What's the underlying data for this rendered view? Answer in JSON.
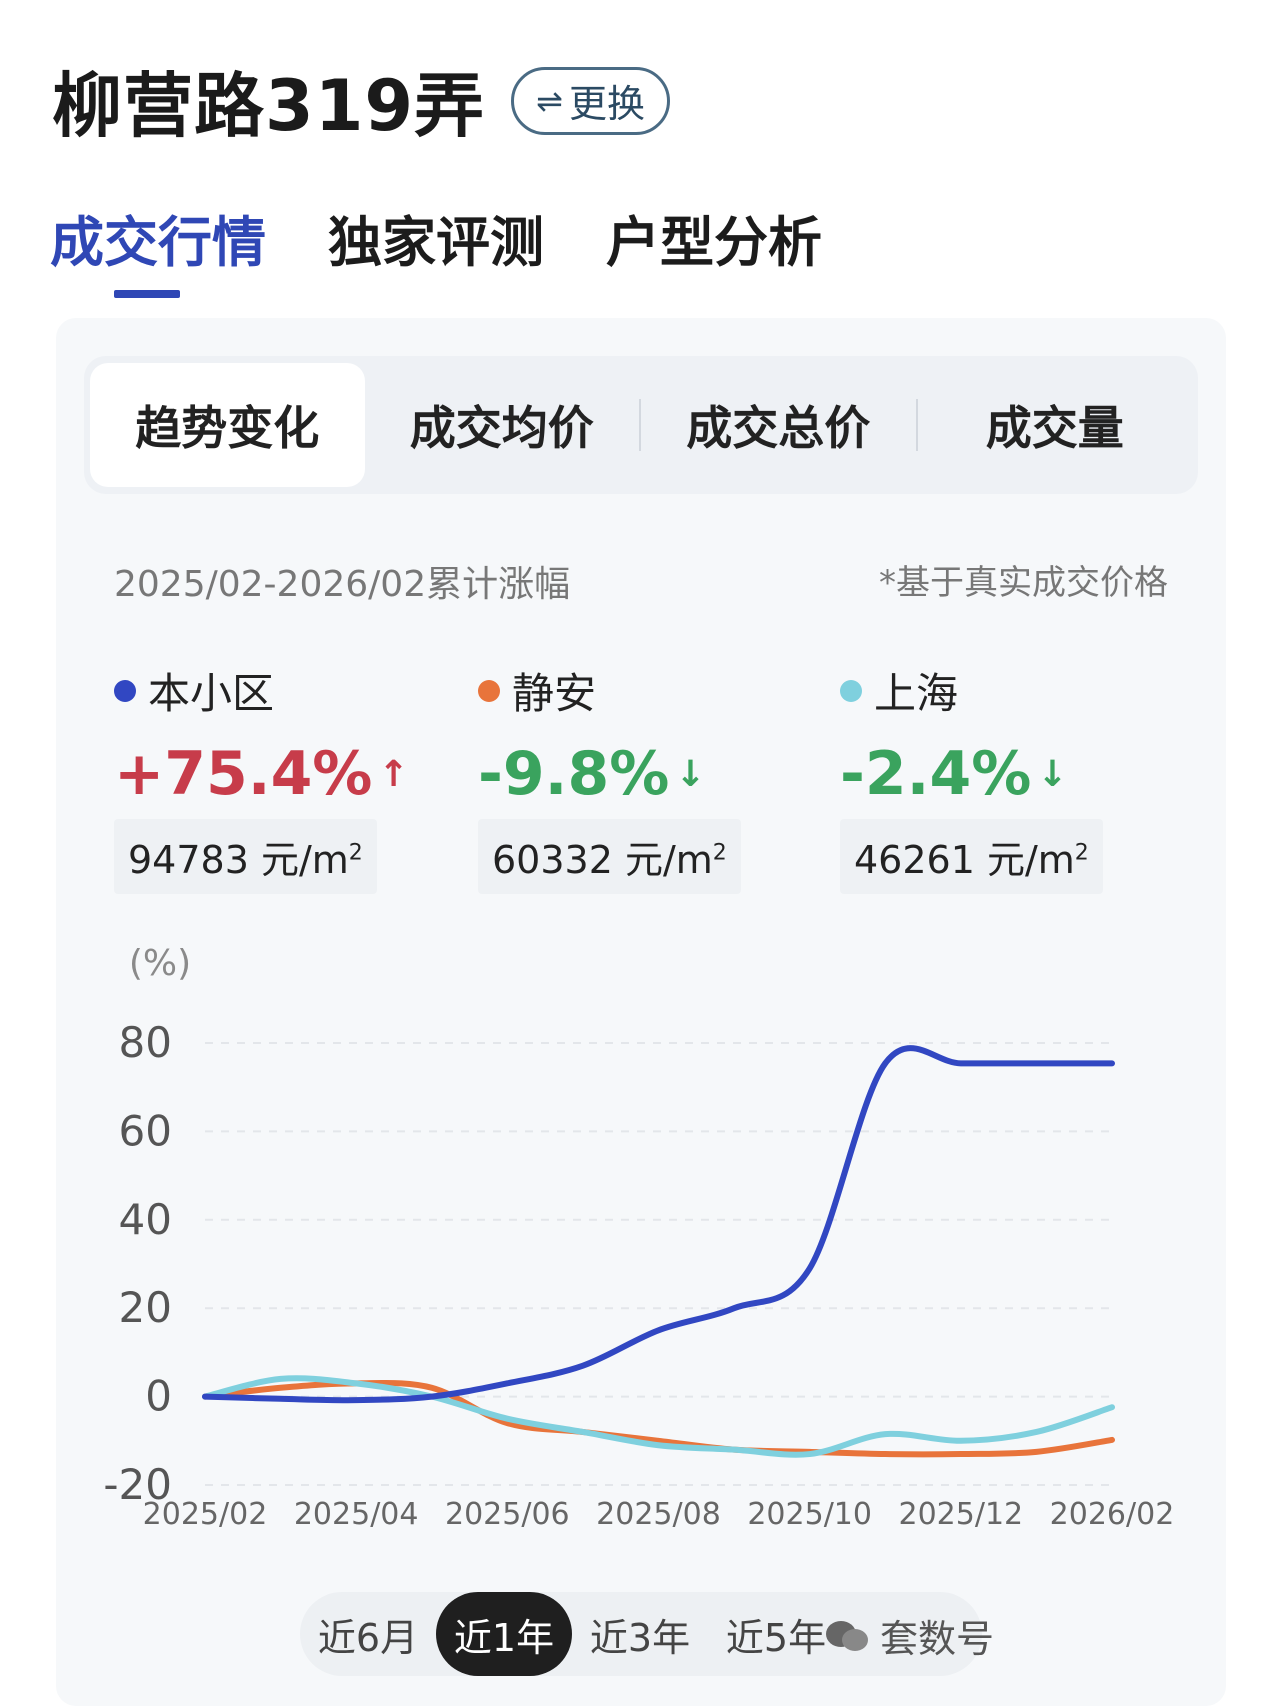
{
  "header": {
    "title": "柳营路319弄",
    "switch_label": "更换",
    "switch_icon": "⇌"
  },
  "tabs": [
    {
      "label": "成交行情",
      "active": true
    },
    {
      "label": "独家评测",
      "active": false
    },
    {
      "label": "户型分析",
      "active": false
    }
  ],
  "segments": [
    {
      "label": "趋势变化",
      "active": true
    },
    {
      "label": "成交均价",
      "active": false
    },
    {
      "label": "成交总价",
      "active": false
    },
    {
      "label": "成交量",
      "active": false
    }
  ],
  "summary": {
    "range_label": "2025/02-2026/02累计涨幅",
    "note": "*基于真实成交价格",
    "items": [
      {
        "name": "本小区",
        "color": "#3147c2",
        "change": "+75.4%",
        "direction": "up",
        "arrow": "↑",
        "price": "94783 元/m",
        "price_sup": "2"
      },
      {
        "name": "静安",
        "color": "#e8743b",
        "change": "-9.8%",
        "direction": "down",
        "arrow": "↓",
        "price": "60332 元/m",
        "price_sup": "2"
      },
      {
        "name": "上海",
        "color": "#7fd0de",
        "change": "-2.4%",
        "direction": "down",
        "arrow": "↓",
        "price": "46261 元/m",
        "price_sup": "2"
      }
    ]
  },
  "chart_data": {
    "type": "line",
    "ylabel": "(%)",
    "ylim": [
      -20,
      80
    ],
    "yticks": [
      "80",
      "60",
      "40",
      "20",
      "0",
      "-20"
    ],
    "x": [
      "2025/02",
      "2025/03",
      "2025/04",
      "2025/05",
      "2025/06",
      "2025/07",
      "2025/08",
      "2025/09",
      "2025/10",
      "2025/11",
      "2025/12",
      "2026/01",
      "2026/02"
    ],
    "xticks": [
      "2025/02",
      "2025/04",
      "2025/06",
      "2025/08",
      "2025/10",
      "2025/12",
      "2026/02"
    ],
    "grid": true,
    "series": [
      {
        "name": "本小区",
        "color": "#3147c2",
        "values": [
          0,
          -0.5,
          -0.8,
          0,
          3,
          7,
          15,
          20,
          29,
          75.4,
          75.4,
          75.4,
          75.4
        ]
      },
      {
        "name": "静安",
        "color": "#e8743b",
        "values": [
          0,
          2,
          3,
          2,
          -6,
          -8,
          -10,
          -12,
          -12.5,
          -13,
          -13,
          -12.5,
          -9.8
        ]
      },
      {
        "name": "上海",
        "color": "#7fd0de",
        "values": [
          0,
          4,
          3,
          0,
          -5,
          -8,
          -11,
          -12,
          -13,
          -8.5,
          -10,
          -8,
          -2.4
        ]
      }
    ]
  },
  "periods": [
    {
      "label": "近6月",
      "active": false
    },
    {
      "label": "近1年",
      "active": true
    },
    {
      "label": "近3年",
      "active": false
    },
    {
      "label": "近5年",
      "active": false
    }
  ],
  "watermark": {
    "text": "套数号"
  }
}
